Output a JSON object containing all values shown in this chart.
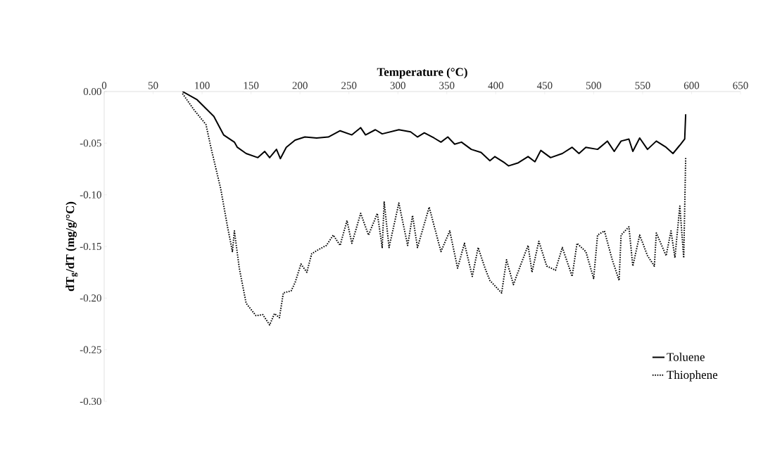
{
  "chart_data": {
    "type": "line",
    "xlabel": "Temperature (°C)",
    "ylabel": "dT$_{g}$/dT (mg/g/°C)",
    "xlim": [
      0,
      650
    ],
    "ylim": [
      -0.3,
      0.0
    ],
    "xticks": [
      0,
      50,
      100,
      150,
      200,
      250,
      300,
      350,
      400,
      450,
      500,
      550,
      600,
      650
    ],
    "yticks": [
      {
        "value": 0,
        "label": "0.00"
      },
      {
        "value": -0.05,
        "label": "-0.05"
      },
      {
        "value": -0.1,
        "label": "-0.10"
      },
      {
        "value": -0.15,
        "label": "-0.15"
      },
      {
        "value": -0.2,
        "label": "-0.20"
      },
      {
        "value": -0.25,
        "label": "-0.25"
      },
      {
        "value": -0.3,
        "label": "-0.30"
      }
    ],
    "legend": "bottom right",
    "series": [
      {
        "name": "Toluene",
        "color": "#000000",
        "line_style": "solid",
        "x": [
          80,
          95,
          112,
          122,
          133,
          136,
          145,
          157,
          164,
          169,
          176,
          180,
          186,
          195,
          205,
          217,
          229,
          241,
          253,
          262,
          267,
          277,
          284,
          301,
          313,
          320,
          327,
          337,
          344,
          351,
          358,
          365,
          375,
          385,
          394,
          399,
          409,
          413,
          423,
          433,
          440,
          446,
          456,
          468,
          478,
          485,
          492,
          504,
          514,
          521,
          528,
          536,
          540,
          547,
          555,
          564,
          574,
          581,
          588,
          593,
          594
        ],
        "values": [
          0,
          -0.008,
          -0.024,
          -0.042,
          -0.049,
          -0.054,
          -0.06,
          -0.064,
          -0.058,
          -0.064,
          -0.056,
          -0.065,
          -0.054,
          -0.047,
          -0.044,
          -0.045,
          -0.044,
          -0.038,
          -0.042,
          -0.035,
          -0.042,
          -0.037,
          -0.041,
          -0.037,
          -0.039,
          -0.044,
          -0.04,
          -0.045,
          -0.049,
          -0.044,
          -0.051,
          -0.049,
          -0.056,
          -0.059,
          -0.067,
          -0.063,
          -0.069,
          -0.072,
          -0.069,
          -0.063,
          -0.068,
          -0.057,
          -0.064,
          -0.06,
          -0.054,
          -0.06,
          -0.054,
          -0.056,
          -0.048,
          -0.058,
          -0.048,
          -0.046,
          -0.058,
          -0.045,
          -0.056,
          -0.048,
          -0.054,
          -0.06,
          -0.052,
          -0.046,
          -0.022
        ]
      },
      {
        "name": "Thiophene",
        "color": "#000000",
        "line_style": "dotted",
        "x": [
          80,
          92,
          104,
          109,
          119,
          126,
          131,
          133,
          138,
          145,
          155,
          162,
          169,
          174,
          179,
          183,
          191,
          195,
          201,
          207,
          212,
          219,
          227,
          234,
          241,
          248,
          253,
          262,
          270,
          279,
          284,
          286,
          291,
          301,
          310,
          315,
          320,
          332,
          344,
          353,
          361,
          368,
          376,
          382,
          389,
          394,
          406,
          411,
          418,
          425,
          433,
          437,
          444,
          452,
          461,
          468,
          478,
          483,
          492,
          500,
          504,
          511,
          519,
          526,
          528,
          536,
          540,
          547,
          555,
          562,
          564,
          574,
          579,
          583,
          588,
          592,
          594
        ],
        "values": [
          -0.002,
          -0.018,
          -0.032,
          -0.054,
          -0.094,
          -0.131,
          -0.155,
          -0.135,
          -0.171,
          -0.205,
          -0.217,
          -0.216,
          -0.226,
          -0.215,
          -0.219,
          -0.195,
          -0.193,
          -0.185,
          -0.167,
          -0.175,
          -0.157,
          -0.153,
          -0.149,
          -0.139,
          -0.149,
          -0.125,
          -0.147,
          -0.118,
          -0.139,
          -0.118,
          -0.151,
          -0.107,
          -0.151,
          -0.108,
          -0.149,
          -0.12,
          -0.151,
          -0.112,
          -0.155,
          -0.135,
          -0.171,
          -0.147,
          -0.179,
          -0.151,
          -0.171,
          -0.183,
          -0.195,
          -0.163,
          -0.187,
          -0.169,
          -0.149,
          -0.175,
          -0.145,
          -0.169,
          -0.173,
          -0.151,
          -0.179,
          -0.147,
          -0.155,
          -0.181,
          -0.139,
          -0.135,
          -0.163,
          -0.183,
          -0.139,
          -0.131,
          -0.169,
          -0.139,
          -0.159,
          -0.169,
          -0.137,
          -0.159,
          -0.135,
          -0.161,
          -0.111,
          -0.161,
          -0.064
        ]
      }
    ]
  }
}
